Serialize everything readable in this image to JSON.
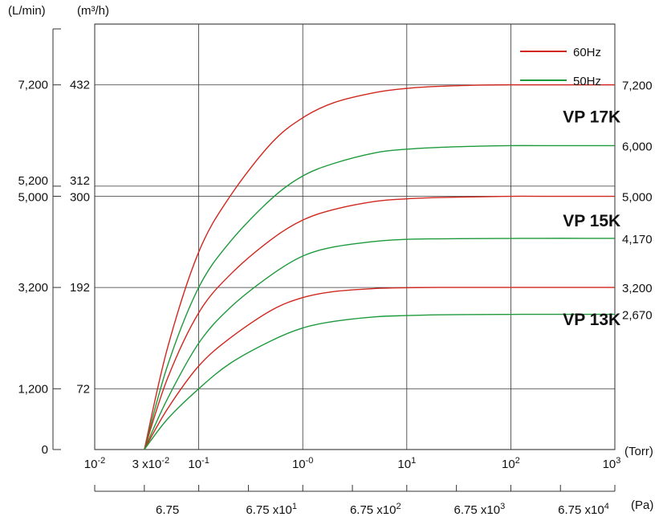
{
  "chart_data": {
    "type": "line",
    "xscale": "log",
    "xlim": [
      0.01,
      1000
    ],
    "ylim": [
      0,
      8400
    ],
    "grid": true,
    "legend_position": "top-right",
    "legend": [
      {
        "label": "60Hz",
        "color": "#d0281e"
      },
      {
        "label": "50Hz",
        "color": "#1e9a3c"
      }
    ],
    "units": {
      "y_left_outer": "(L/min)",
      "y_left_inner": "(m³/h)",
      "x_torr": "(Torr)",
      "x_pa": "(Pa)"
    },
    "y_ticks_outer": [
      {
        "value": 7200,
        "label": "7,200"
      },
      {
        "value": 5200,
        "label": "5,200"
      },
      {
        "value": 5000,
        "label": "5,000"
      },
      {
        "value": 3200,
        "label": "3,200"
      },
      {
        "value": 1200,
        "label": "1,200"
      },
      {
        "value": 0,
        "label": "0"
      }
    ],
    "y_ticks_inner": [
      {
        "value": 7200,
        "label": "432"
      },
      {
        "value": 5200,
        "label": "312"
      },
      {
        "value": 5000,
        "label": "300"
      },
      {
        "value": 3200,
        "label": "192"
      },
      {
        "value": 1200,
        "label": "72"
      }
    ],
    "y_ticks_right": [
      {
        "value": 7200,
        "label": "7,200"
      },
      {
        "value": 6000,
        "label": "6,000"
      },
      {
        "value": 5000,
        "label": "5,000"
      },
      {
        "value": 4170,
        "label": "4,170"
      },
      {
        "value": 3200,
        "label": "3,200"
      },
      {
        "value": 2670,
        "label": "2,670"
      }
    ],
    "x_ticks_torr": [
      {
        "value": 0.01,
        "base": "10",
        "exp": "-2"
      },
      {
        "value": 0.03,
        "base": "3 x10",
        "exp": "-2"
      },
      {
        "value": 0.1,
        "base": "10",
        "exp": "-1"
      },
      {
        "value": 1,
        "base": "10",
        "exp": "-0"
      },
      {
        "value": 10,
        "base": "10",
        "exp": "1"
      },
      {
        "value": 100,
        "base": "10",
        "exp": "2"
      },
      {
        "value": 1000,
        "base": "10",
        "exp": "3"
      }
    ],
    "x_ticks_pa": [
      {
        "value": 0.05,
        "base": "6.75",
        "exp": ""
      },
      {
        "value": 0.5,
        "base": "6.75 x10",
        "exp": "1"
      },
      {
        "value": 5,
        "base": "6.75 x10",
        "exp": "2"
      },
      {
        "value": 50,
        "base": "6.75 x10",
        "exp": "3"
      },
      {
        "value": 500,
        "base": "6.75 x10",
        "exp": "4"
      }
    ],
    "x_ticks_pa_minor": [
      0.01,
      0.03,
      0.1,
      0.3,
      1,
      3,
      10,
      30,
      100,
      300,
      1000
    ],
    "models": [
      {
        "label": "VP 17K",
        "x": 300,
        "y": 6550
      },
      {
        "label": "VP 15K",
        "x": 300,
        "y": 4500
      },
      {
        "label": "VP 13K",
        "x": 300,
        "y": 2550
      }
    ],
    "series": [
      {
        "model": "VP 17K",
        "freq": "60Hz",
        "color": "#d0281e",
        "x": [
          0.03,
          0.05,
          0.1,
          0.2,
          0.5,
          1,
          2,
          5,
          10,
          20,
          50,
          100,
          200,
          500,
          1000
        ],
        "y": [
          0,
          2000,
          3900,
          5000,
          6050,
          6550,
          6850,
          7050,
          7130,
          7170,
          7195,
          7200,
          7200,
          7200,
          7200
        ]
      },
      {
        "model": "VP 17K",
        "freq": "50Hz",
        "color": "#1e9a3c",
        "x": [
          0.03,
          0.05,
          0.1,
          0.2,
          0.5,
          1,
          2,
          5,
          10,
          20,
          50,
          100,
          200,
          500,
          1000
        ],
        "y": [
          0,
          1650,
          3200,
          4100,
          4950,
          5400,
          5650,
          5860,
          5930,
          5965,
          5990,
          6000,
          6000,
          6000,
          6000
        ]
      },
      {
        "model": "VP 15K",
        "freq": "60Hz",
        "color": "#d0281e",
        "x": [
          0.03,
          0.05,
          0.1,
          0.2,
          0.5,
          1,
          2,
          5,
          10,
          20,
          50,
          100,
          200,
          500,
          1000
        ],
        "y": [
          0,
          1400,
          2700,
          3450,
          4150,
          4530,
          4740,
          4900,
          4950,
          4975,
          4990,
          5000,
          5000,
          5000,
          5000
        ]
      },
      {
        "model": "VP 15K",
        "freq": "50Hz",
        "color": "#1e9a3c",
        "x": [
          0.03,
          0.05,
          0.1,
          0.2,
          0.5,
          1,
          2,
          5,
          10,
          20,
          50,
          100,
          200,
          500,
          1000
        ],
        "y": [
          0,
          1000,
          2100,
          2800,
          3450,
          3820,
          4000,
          4110,
          4150,
          4160,
          4165,
          4168,
          4170,
          4170,
          4170
        ]
      },
      {
        "model": "VP 13K",
        "freq": "60Hz",
        "color": "#d0281e",
        "x": [
          0.03,
          0.05,
          0.1,
          0.2,
          0.5,
          1,
          2,
          5,
          10,
          20,
          50,
          100,
          200,
          500,
          1000
        ],
        "y": [
          0,
          800,
          1650,
          2200,
          2750,
          3000,
          3120,
          3180,
          3195,
          3200,
          3200,
          3200,
          3200,
          3200,
          3200
        ]
      },
      {
        "model": "VP 13K",
        "freq": "50Hz",
        "color": "#1e9a3c",
        "x": [
          0.03,
          0.05,
          0.1,
          0.2,
          0.5,
          1,
          2,
          5,
          10,
          20,
          50,
          100,
          200,
          500,
          1000
        ],
        "y": [
          0,
          600,
          1200,
          1700,
          2150,
          2400,
          2530,
          2620,
          2645,
          2660,
          2665,
          2668,
          2670,
          2670,
          2670
        ]
      }
    ]
  }
}
